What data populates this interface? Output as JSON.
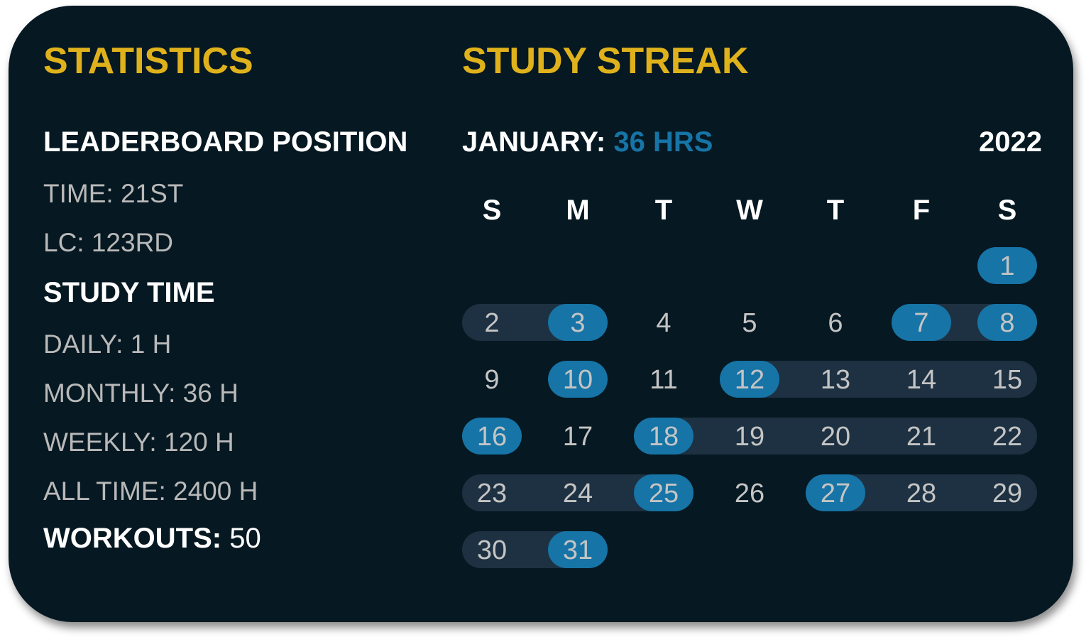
{
  "statistics": {
    "title": "STATISTICS",
    "leaderboard_heading": "LEADERBOARD POSITION",
    "time": "TIME: 21ST",
    "lc": "LC: 123RD",
    "study_time_heading": "STUDY TIME",
    "daily": "DAILY: 1 H",
    "monthly": "MONTHLY: 36 H",
    "weekly": "WEEKLY: 120 H",
    "all_time": "ALL TIME: 2400 H",
    "workouts_label": "WORKOUTS:",
    "workouts_value": "50"
  },
  "streak": {
    "title": "STUDY STREAK",
    "month_label": "JANUARY:",
    "month_hours": "36 HRS",
    "year": "2022",
    "weekdays": [
      "S",
      "M",
      "T",
      "W",
      "T",
      "F",
      "S"
    ],
    "first_weekday_index": 6,
    "days_in_month": 31,
    "studied_days": [
      1,
      3,
      7,
      8,
      10,
      12,
      16,
      18,
      25,
      27,
      31
    ],
    "streak_ranges": [
      [
        2,
        3
      ],
      [
        7,
        8
      ],
      [
        12,
        15
      ],
      [
        18,
        22
      ],
      [
        23,
        25
      ],
      [
        27,
        29
      ],
      [
        30,
        31
      ]
    ],
    "colors": {
      "accent": "#1674a6",
      "streak_bar": "#1d3142",
      "title": "#dfb21c",
      "background": "#061822"
    }
  }
}
